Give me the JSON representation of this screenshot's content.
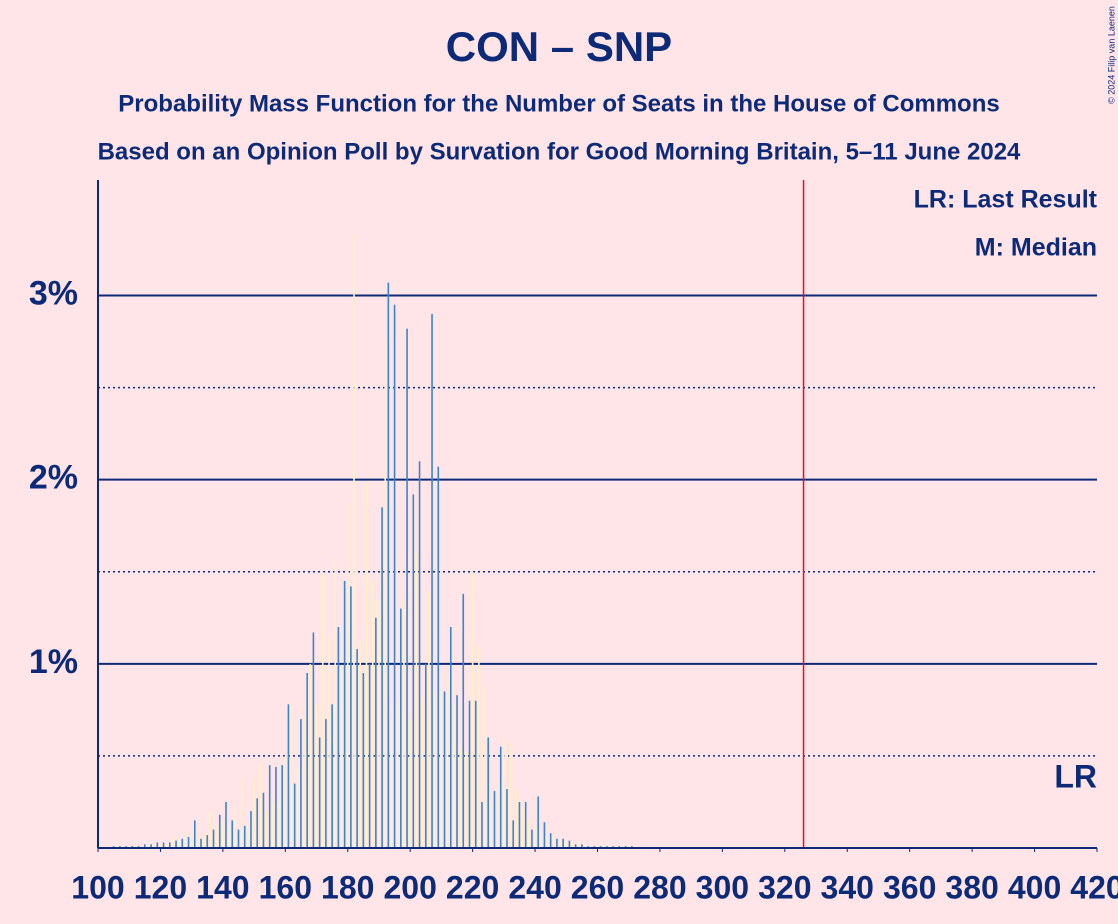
{
  "chart_data": {
    "type": "bar",
    "title": "CON – SNP",
    "subtitle": [
      "Probability Mass Function for the Number of Seats in the House of Commons",
      "Based on an Opinion Poll by Survation for Good Morning Britain, 5–11 June 2024"
    ],
    "legend": [
      "LR: Last Result",
      "M: Median"
    ],
    "last_result": 326,
    "last_result_label": "LR",
    "last_result_color": "#e0102a",
    "copyright": "© 2024 Filip van Laenen",
    "colors": [
      "#3a86c8",
      "#fff2c2"
    ],
    "x": [
      105,
      106,
      107,
      108,
      109,
      110,
      111,
      112,
      113,
      114,
      115,
      116,
      117,
      118,
      119,
      120,
      121,
      122,
      123,
      124,
      125,
      126,
      127,
      128,
      129,
      130,
      131,
      132,
      133,
      134,
      135,
      136,
      137,
      138,
      139,
      140,
      141,
      142,
      143,
      144,
      145,
      146,
      147,
      148,
      149,
      150,
      151,
      152,
      153,
      154,
      155,
      156,
      157,
      158,
      159,
      160,
      161,
      162,
      163,
      164,
      165,
      166,
      167,
      168,
      169,
      170,
      171,
      172,
      173,
      174,
      175,
      176,
      177,
      178,
      179,
      180,
      181,
      182,
      183,
      184,
      185,
      186,
      187,
      188,
      189,
      190,
      191,
      192,
      193,
      194,
      195,
      196,
      197,
      198,
      199,
      200,
      201,
      202,
      203,
      204,
      205,
      206,
      207,
      208,
      209,
      210,
      211,
      212,
      213,
      214,
      215,
      216,
      217,
      218,
      219,
      220,
      221,
      222,
      223,
      224,
      225,
      226,
      227,
      228,
      229,
      230,
      231,
      232,
      233,
      234,
      235,
      236,
      237,
      238,
      239,
      240,
      241,
      242,
      243,
      244,
      245,
      246,
      247,
      248,
      249,
      250,
      251,
      252,
      253,
      254,
      255,
      256,
      257,
      258,
      259,
      260,
      261,
      262,
      263,
      264,
      265,
      266,
      267,
      268,
      269,
      270,
      271,
      272
    ],
    "values": [
      0.01,
      0.01,
      0.01,
      0.01,
      0.01,
      0.01,
      0.01,
      0.01,
      0.01,
      0.01,
      0.02,
      0.01,
      0.02,
      0.02,
      0.03,
      0.02,
      0.03,
      0.02,
      0.03,
      0.06,
      0.04,
      0.05,
      0.05,
      0.08,
      0.06,
      0.1,
      0.15,
      0.06,
      0.05,
      0.08,
      0.07,
      0.2,
      0.1,
      0.12,
      0.18,
      0.15,
      0.25,
      0.12,
      0.15,
      0.22,
      0.1,
      0.38,
      0.12,
      0.14,
      0.2,
      0.38,
      0.27,
      0.46,
      0.3,
      0.2,
      0.45,
      0.24,
      0.44,
      0.26,
      0.45,
      0.5,
      0.78,
      0.8,
      0.35,
      0.45,
      0.7,
      0.72,
      0.95,
      1.0,
      1.17,
      0.78,
      0.6,
      1.5,
      0.7,
      1.15,
      0.78,
      1.57,
      1.2,
      0.98,
      1.45,
      1.88,
      1.42,
      3.33,
      1.08,
      1.12,
      0.95,
      1.98,
      1.0,
      1.45,
      1.25,
      1.35,
      1.85,
      2.75,
      3.07,
      0.7,
      2.95,
      0.8,
      1.3,
      1.35,
      2.82,
      0.7,
      1.92,
      1.6,
      2.1,
      0.82,
      1.0,
      1.4,
      2.9,
      0.85,
      2.07,
      0.86,
      0.85,
      0.95,
      1.2,
      0.78,
      0.83,
      0.55,
      1.38,
      0.52,
      0.8,
      1.5,
      0.8,
      1.1,
      0.25,
      0.88,
      0.6,
      0.3,
      0.31,
      0.38,
      0.55,
      0.6,
      0.32,
      0.58,
      0.15,
      0.32,
      0.25,
      0.22,
      0.25,
      0.16,
      0.1,
      0.12,
      0.28,
      0.12,
      0.14,
      0.06,
      0.08,
      0.09,
      0.05,
      0.04,
      0.05,
      0.03,
      0.04,
      0.03,
      0.02,
      0.03,
      0.02,
      0.02,
      0.01,
      0.01,
      0.01,
      0.01,
      0.01,
      0.01,
      0.01,
      0.01,
      0.01,
      0.01,
      0.01,
      0.01,
      0.01,
      0.01,
      0.01,
      0.01
    ],
    "xlim": [
      100,
      420
    ],
    "xticks": [
      100,
      120,
      140,
      160,
      180,
      200,
      220,
      240,
      260,
      280,
      300,
      320,
      340,
      360,
      380,
      400,
      420
    ],
    "ylim": [
      0,
      3.6
    ],
    "yticks": [
      {
        "value": 1,
        "label": "1%"
      },
      {
        "value": 2,
        "label": "2%"
      },
      {
        "value": 3,
        "label": "3%"
      }
    ],
    "yminor": [
      0.5,
      1.5,
      2.5
    ],
    "grid": true
  }
}
